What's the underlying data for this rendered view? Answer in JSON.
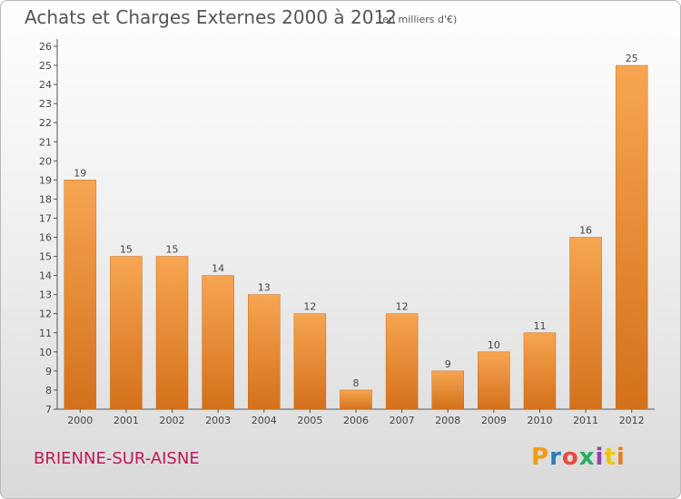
{
  "header": {
    "title": "Achats et Charges Externes 2000 à 2012",
    "unit": "(en milliers d'€)"
  },
  "footer": {
    "commune": "BRIENNE-SUR-AISNE",
    "logo_text": "Proxiti",
    "logo_colors": [
      "#f39c12",
      "#2980b9",
      "#e74c3c",
      "#27ae60",
      "#8e44ad",
      "#f1c40f",
      "#e67e22"
    ]
  },
  "colors": {
    "bar_light": "#f7a552",
    "bar_dark": "#d4711b",
    "axis": "#555555",
    "grid": "#cccccc"
  },
  "chart_data": {
    "type": "bar",
    "title": "Achats et Charges Externes 2000 à 2012",
    "subtitle": "(en milliers d'€)",
    "xlabel": "",
    "ylabel": "",
    "categories": [
      "2000",
      "2001",
      "2002",
      "2003",
      "2004",
      "2005",
      "2006",
      "2007",
      "2008",
      "2009",
      "2010",
      "2011",
      "2012"
    ],
    "values": [
      19,
      15,
      15,
      14,
      13,
      12,
      8,
      12,
      9,
      10,
      11,
      16,
      25
    ],
    "ylim": [
      7,
      26
    ],
    "yticks": [
      7,
      8,
      9,
      10,
      11,
      12,
      13,
      14,
      15,
      16,
      17,
      18,
      19,
      20,
      21,
      22,
      23,
      24,
      25,
      26
    ],
    "grid": false,
    "legend": "none"
  }
}
